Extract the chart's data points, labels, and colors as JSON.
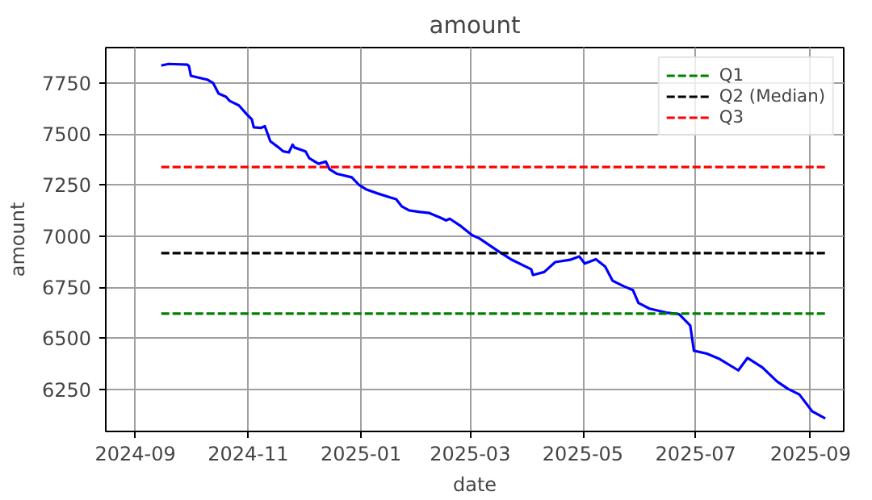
{
  "chart_data": {
    "type": "line",
    "title": "amount",
    "xlabel": "date",
    "ylabel": "amount",
    "xlim": [
      "2024-08-16",
      "2025-09-19"
    ],
    "ylim": [
      6044,
      7923
    ],
    "xticks": [
      "2024-09",
      "2024-11",
      "2025-01",
      "2025-03",
      "2025-05",
      "2025-07",
      "2025-09"
    ],
    "yticks": [
      6250,
      6500,
      6750,
      7000,
      7250,
      7500,
      7750
    ],
    "grid": true,
    "legend": "top right",
    "line_style": "solid",
    "marker": "none",
    "series": [
      {
        "color": "#0000ff",
        "x": [
          "2024-09-15",
          "2024-09-19",
          "2024-09-29",
          "2024-09-30",
          "2024-10-01",
          "2024-10-10",
          "2024-10-13",
          "2024-10-16",
          "2024-10-20",
          "2024-10-22",
          "2024-10-27",
          "2024-10-31",
          "2024-11-03",
          "2024-11-04",
          "2024-11-08",
          "2024-11-10",
          "2024-11-13",
          "2024-11-17",
          "2024-11-20",
          "2024-11-23",
          "2024-11-25",
          "2024-11-26",
          "2024-12-02",
          "2024-12-04",
          "2024-12-09",
          "2024-12-13",
          "2024-12-15",
          "2024-12-19",
          "2024-12-27",
          "2024-12-31",
          "2025-01-04",
          "2025-01-10",
          "2025-01-17",
          "2025-01-20",
          "2025-01-23",
          "2025-01-27",
          "2025-02-02",
          "2025-02-07",
          "2025-02-13",
          "2025-02-16",
          "2025-02-18",
          "2025-02-24",
          "2025-03-02",
          "2025-03-06",
          "2025-03-16",
          "2025-03-23",
          "2025-04-03",
          "2025-04-04",
          "2025-04-10",
          "2025-04-16",
          "2025-04-24",
          "2025-04-29",
          "2025-05-02",
          "2025-05-08",
          "2025-05-13",
          "2025-05-17",
          "2025-05-23",
          "2025-05-28",
          "2025-05-31",
          "2025-06-06",
          "2025-06-15",
          "2025-06-22",
          "2025-06-28",
          "2025-06-30",
          "2025-07-07",
          "2025-07-14",
          "2025-07-24",
          "2025-07-29",
          "2025-08-06",
          "2025-08-14",
          "2025-08-20",
          "2025-08-26",
          "2025-09-02",
          "2025-09-09"
        ],
        "values": [
          7835,
          7843,
          7840,
          7832,
          7785,
          7766,
          7750,
          7698,
          7682,
          7662,
          7640,
          7599,
          7571,
          7533,
          7530,
          7538,
          7464,
          7437,
          7415,
          7410,
          7448,
          7434,
          7415,
          7382,
          7354,
          7365,
          7327,
          7305,
          7288,
          7250,
          7228,
          7209,
          7189,
          7181,
          7146,
          7126,
          7118,
          7113,
          7090,
          7077,
          7085,
          7049,
          7005,
          6989,
          6928,
          6887,
          6838,
          6810,
          6824,
          6873,
          6884,
          6901,
          6866,
          6887,
          6851,
          6782,
          6755,
          6736,
          6673,
          6645,
          6626,
          6618,
          6563,
          6439,
          6425,
          6398,
          6343,
          6404,
          6357,
          6288,
          6252,
          6225,
          6142,
          6108
        ]
      },
      {
        "name": "Q1",
        "color": "#008000",
        "line_style": "dashed",
        "x": [
          "2024-09-15",
          "2025-09-10"
        ],
        "values": [
          6621,
          6621
        ]
      },
      {
        "name": "Q2 (Median)",
        "color": "#000000",
        "line_style": "dashed",
        "x": [
          "2024-09-15",
          "2025-09-10"
        ],
        "values": [
          6917,
          6917
        ]
      },
      {
        "name": "Q3",
        "color": "#ff0000",
        "line_style": "dashed",
        "x": [
          "2024-09-15",
          "2025-09-10"
        ],
        "values": [
          7338,
          7338
        ]
      }
    ]
  }
}
